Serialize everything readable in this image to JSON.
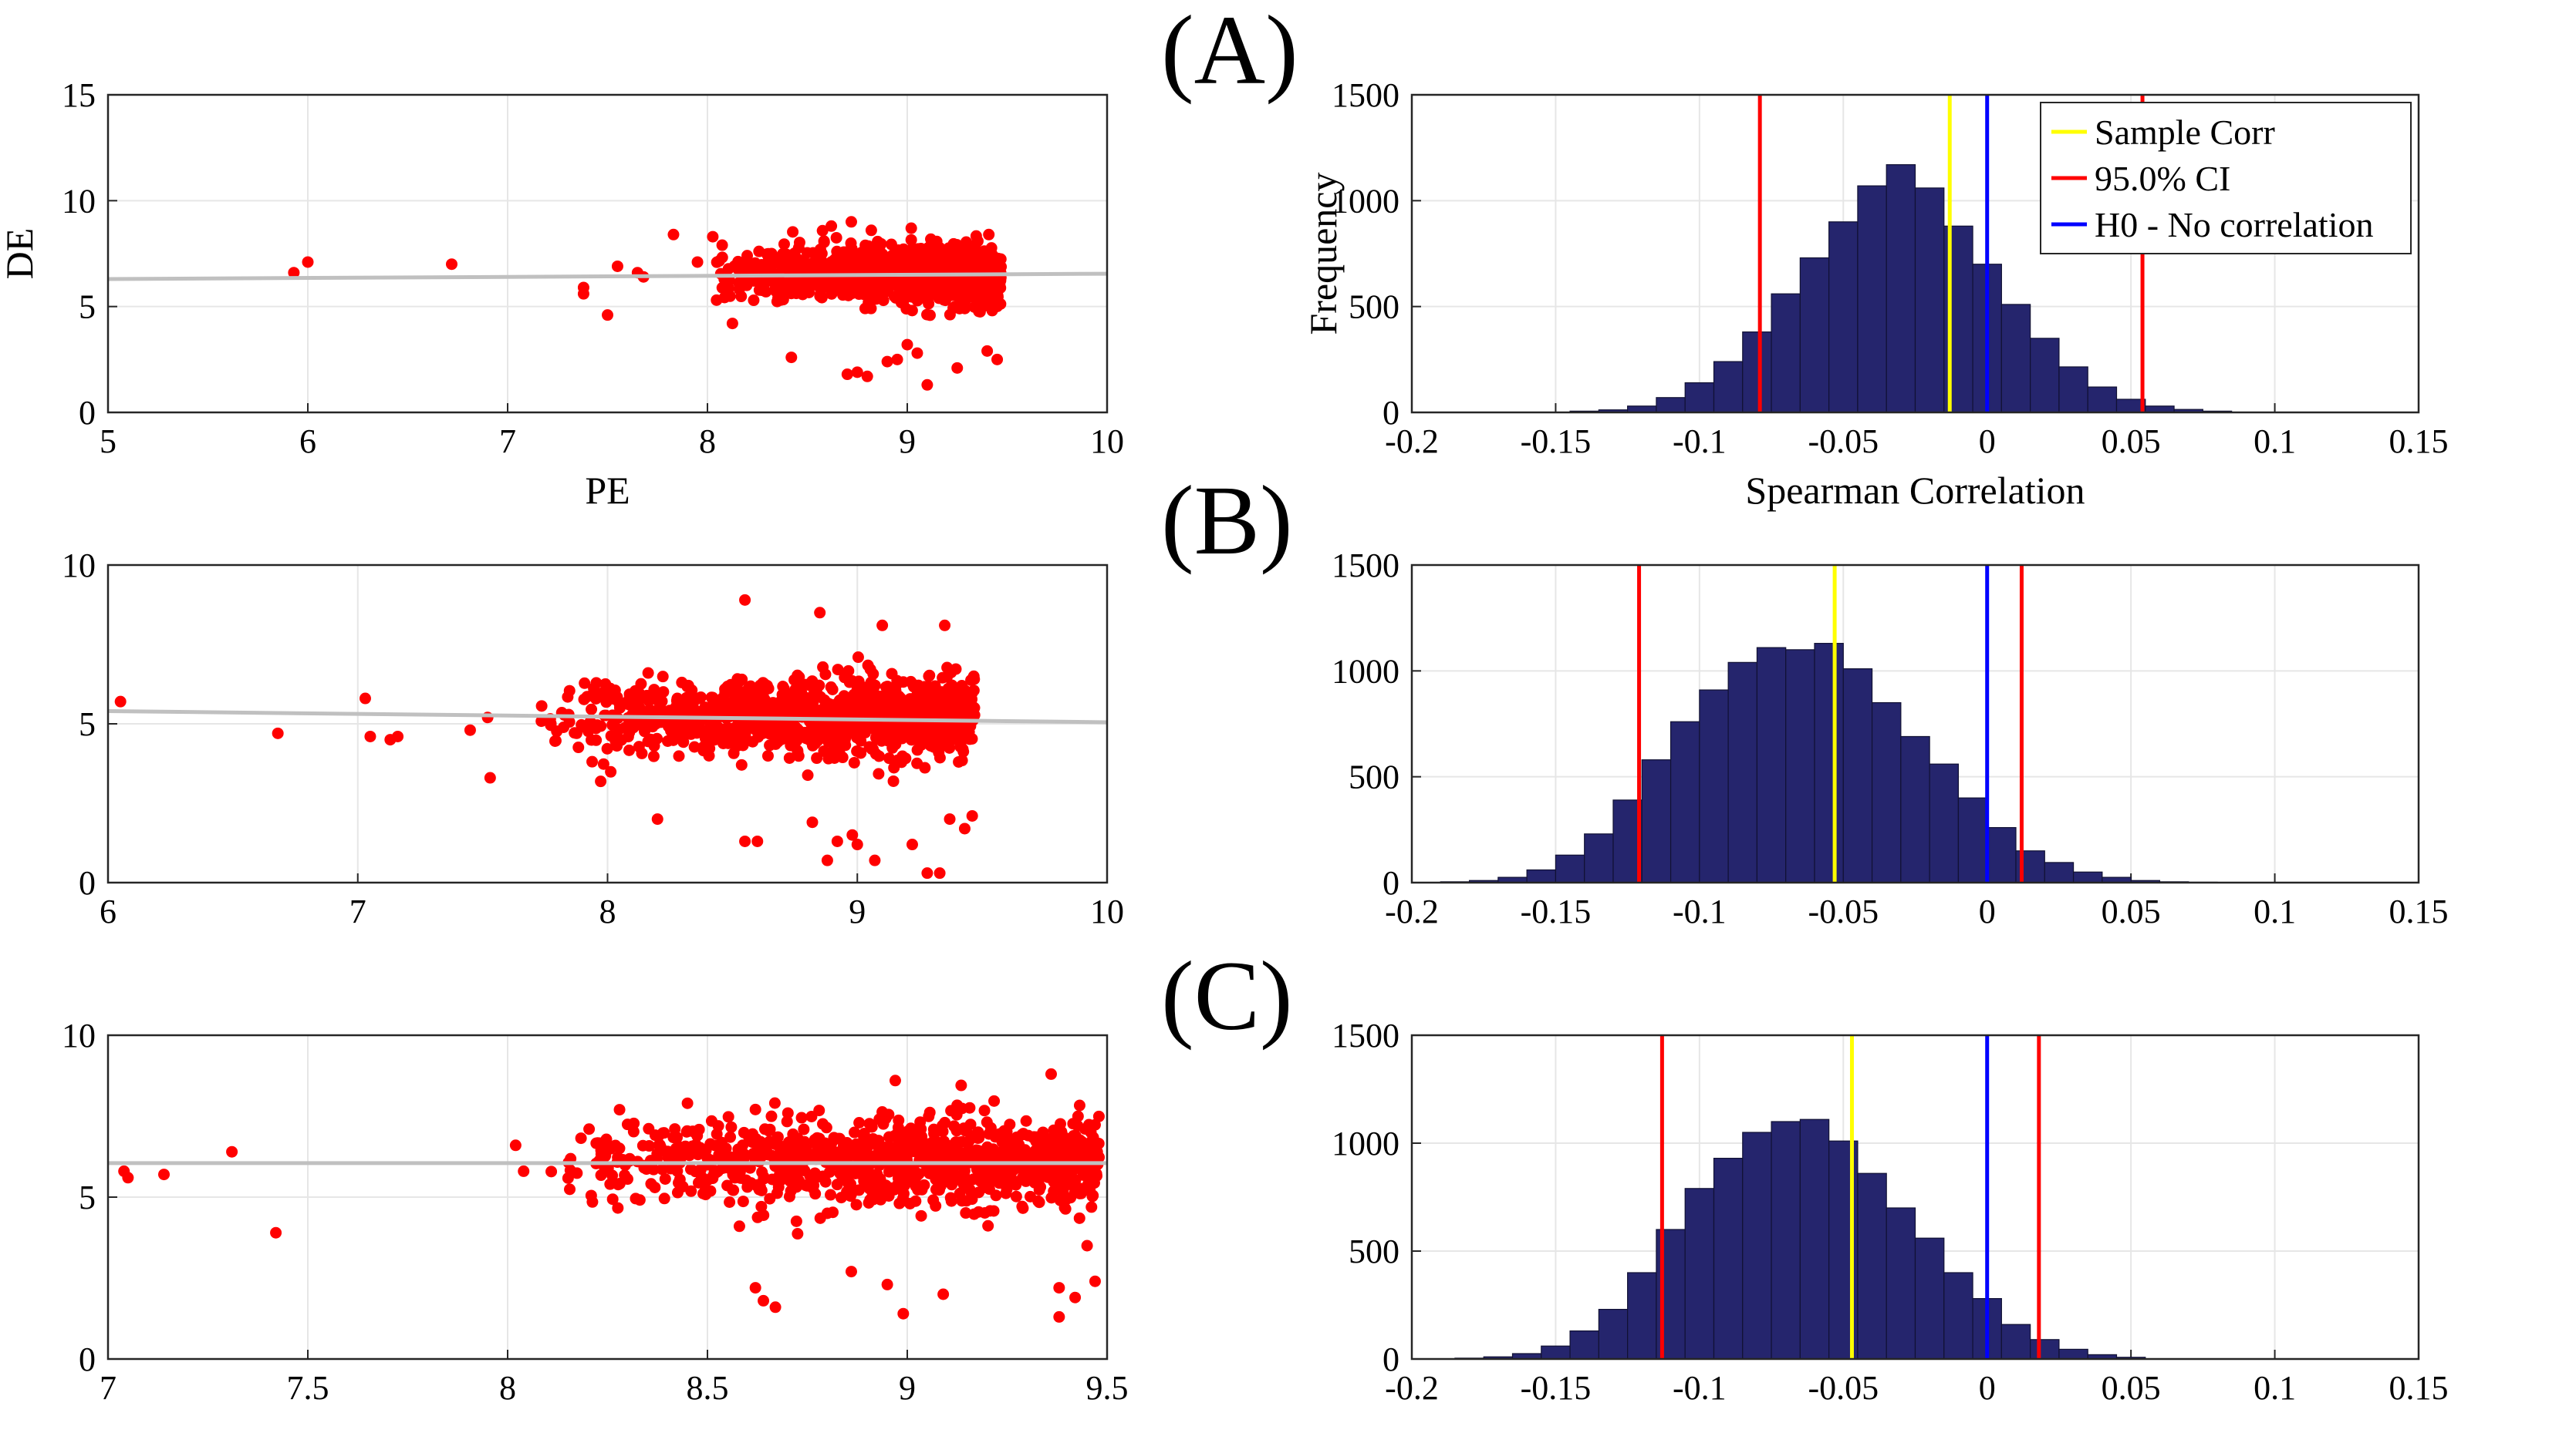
{
  "panel_labels": [
    "(A)",
    "(B)",
    "(C)"
  ],
  "colors": {
    "scatter_points": "#ff0000",
    "trend_line": "#c0c0c0",
    "histogram_bars": "#25256d",
    "sample_corr": "#ffff00",
    "ci_lines": "#ff0000",
    "h0_line": "#0000ff",
    "grid": "#e6e6e6"
  },
  "legend": {
    "sample_corr": "Sample Corr",
    "ci": "95.0% CI",
    "h0": "H0 - No correlation"
  },
  "chart_data": [
    {
      "panel": "(A)",
      "type": "scatter",
      "xlabel": "PE",
      "ylabel": "DE",
      "xlim": [
        5,
        10
      ],
      "ylim": [
        0,
        15
      ],
      "xticks": [
        "5",
        "6",
        "7",
        "8",
        "9",
        "10"
      ],
      "yticks": [
        "0",
        "5",
        "10",
        "15"
      ],
      "grid": true,
      "trend_line": {
        "x": [
          5,
          10
        ],
        "y": [
          6.3,
          6.55
        ]
      },
      "series": [
        {
          "points_outliers": [
            [
              5.93,
              6.6
            ],
            [
              6.0,
              7.1
            ],
            [
              6.72,
              7.0
            ],
            [
              7.38,
              5.9
            ],
            [
              7.38,
              5.6
            ],
            [
              7.5,
              4.6
            ],
            [
              7.55,
              6.9
            ],
            [
              7.65,
              6.6
            ],
            [
              7.68,
              6.4
            ],
            [
              7.83,
              8.4
            ],
            [
              7.95,
              7.1
            ],
            [
              8.42,
              2.6
            ],
            [
              8.7,
              1.8
            ],
            [
              8.75,
              1.9
            ],
            [
              8.8,
              1.7
            ],
            [
              8.9,
              2.4
            ],
            [
              8.95,
              2.5
            ],
            [
              9.0,
              3.2
            ],
            [
              9.05,
              2.8
            ],
            [
              9.1,
              1.3
            ],
            [
              9.25,
              2.1
            ],
            [
              9.4,
              2.9
            ],
            [
              9.45,
              2.5
            ],
            [
              8.62,
              8.8
            ],
            [
              8.72,
              9.0
            ],
            [
              8.82,
              8.6
            ],
            [
              9.02,
              8.7
            ]
          ],
          "dense_cluster": {
            "x_range": [
              8.0,
              9.47
            ],
            "y_center": 6.5,
            "y_spread": 1.2,
            "n": 1100
          }
        }
      ]
    },
    {
      "panel": "(A)",
      "type": "histogram",
      "xlabel": "Spearman Correlation",
      "ylabel": "Frequency",
      "xlim": [
        -0.2,
        0.15
      ],
      "ylim": [
        0,
        1500
      ],
      "xticks": [
        "-0.2",
        "-0.15",
        "-0.1",
        "-0.05",
        "0",
        "0.05",
        "0.1",
        "0.15"
      ],
      "yticks": [
        "0",
        "500",
        "1000",
        "1500"
      ],
      "grid": true,
      "legend_position": "top-right",
      "bin_edges_start": -0.145,
      "bin_width": 0.01,
      "counts": [
        6,
        12,
        30,
        70,
        140,
        240,
        380,
        560,
        730,
        900,
        1070,
        1170,
        1060,
        880,
        700,
        510,
        350,
        215,
        120,
        62,
        30,
        14,
        6
      ],
      "sample_corr": -0.013,
      "ci": [
        -0.079,
        0.054
      ],
      "h0": 0
    },
    {
      "panel": "(B)",
      "type": "scatter",
      "xlabel": "",
      "ylabel": "",
      "xlim": [
        6,
        10
      ],
      "ylim": [
        0,
        10
      ],
      "xticks": [
        "6",
        "7",
        "8",
        "9",
        "10"
      ],
      "yticks": [
        "0",
        "5",
        "10"
      ],
      "grid": true,
      "trend_line": {
        "x": [
          6,
          10
        ],
        "y": [
          5.4,
          5.05
        ]
      },
      "series": [
        {
          "points_outliers": [
            [
              6.05,
              5.7
            ],
            [
              6.68,
              4.7
            ],
            [
              7.03,
              5.8
            ],
            [
              7.05,
              4.6
            ],
            [
              7.13,
              4.5
            ],
            [
              7.16,
              4.6
            ],
            [
              7.45,
              4.8
            ],
            [
              7.52,
              5.2
            ],
            [
              7.53,
              3.3
            ],
            [
              8.2,
              2.0
            ],
            [
              8.55,
              1.3
            ],
            [
              8.6,
              1.3
            ],
            [
              8.82,
              1.9
            ],
            [
              8.88,
              0.7
            ],
            [
              8.92,
              1.3
            ],
            [
              8.98,
              1.5
            ],
            [
              9.0,
              1.2
            ],
            [
              9.07,
              0.7
            ],
            [
              9.22,
              1.2
            ],
            [
              9.28,
              0.3
            ],
            [
              9.33,
              0.3
            ],
            [
              9.37,
              2.0
            ],
            [
              9.43,
              1.7
            ],
            [
              9.46,
              2.1
            ],
            [
              8.55,
              8.9
            ],
            [
              8.85,
              8.5
            ],
            [
              9.1,
              8.1
            ],
            [
              9.35,
              8.1
            ]
          ],
          "dense_cluster": {
            "x_range": [
              7.7,
              9.47
            ],
            "y_center": 5.2,
            "y_spread": 1.1,
            "n": 1100
          }
        }
      ]
    },
    {
      "panel": "(B)",
      "type": "histogram",
      "xlabel": "",
      "ylabel": "",
      "xlim": [
        -0.2,
        0.15
      ],
      "ylim": [
        0,
        1500
      ],
      "xticks": [
        "-0.2",
        "-0.15",
        "-0.1",
        "-0.05",
        "0",
        "0.05",
        "0.1",
        "0.15"
      ],
      "yticks": [
        "0",
        "500",
        "1000",
        "1500"
      ],
      "grid": true,
      "bin_edges_start": -0.19,
      "bin_width": 0.01,
      "counts": [
        4,
        10,
        25,
        60,
        130,
        230,
        390,
        580,
        760,
        910,
        1040,
        1110,
        1100,
        1130,
        1010,
        850,
        690,
        560,
        400,
        260,
        150,
        95,
        50,
        25,
        10,
        4,
        2
      ],
      "sample_corr": -0.053,
      "ci": [
        -0.121,
        0.012
      ],
      "h0": 0
    },
    {
      "panel": "(C)",
      "type": "scatter",
      "xlabel": "",
      "ylabel": "",
      "xlim": [
        7,
        9.5
      ],
      "ylim": [
        0,
        10
      ],
      "xticks": [
        "7",
        "7.5",
        "8",
        "8.5",
        "9",
        "9.5"
      ],
      "yticks": [
        "0",
        "5",
        "10"
      ],
      "grid": true,
      "trend_line": {
        "x": [
          7,
          9.5
        ],
        "y": [
          6.05,
          6.05
        ]
      },
      "series": [
        {
          "points_outliers": [
            [
              7.04,
              5.8
            ],
            [
              7.05,
              5.6
            ],
            [
              7.14,
              5.7
            ],
            [
              7.31,
              6.4
            ],
            [
              7.42,
              3.9
            ],
            [
              8.02,
              6.6
            ],
            [
              8.04,
              5.8
            ],
            [
              8.5,
              6.0
            ],
            [
              8.58,
              4.1
            ],
            [
              8.62,
              2.2
            ],
            [
              8.64,
              1.8
            ],
            [
              8.67,
              1.6
            ],
            [
              8.8,
              4.5
            ],
            [
              8.86,
              2.7
            ],
            [
              8.95,
              2.3
            ],
            [
              8.99,
              1.4
            ],
            [
              9.09,
              2.0
            ],
            [
              9.38,
              2.2
            ],
            [
              9.38,
              1.3
            ],
            [
              9.42,
              1.9
            ],
            [
              9.47,
              2.4
            ],
            [
              9.45,
              3.5
            ],
            [
              8.97,
              8.6
            ],
            [
              9.36,
              8.8
            ],
            [
              8.45,
              7.9
            ],
            [
              8.28,
              7.7
            ]
          ],
          "dense_cluster": {
            "x_range": [
              8.1,
              9.48
            ],
            "y_center": 6.1,
            "y_spread": 1.2,
            "n": 1000
          }
        }
      ]
    },
    {
      "panel": "(C)",
      "type": "histogram",
      "xlabel": "",
      "ylabel": "",
      "xlim": [
        -0.2,
        0.15
      ],
      "ylim": [
        0,
        1500
      ],
      "xticks": [
        "-0.2",
        "-0.15",
        "-0.1",
        "-0.05",
        "0",
        "0.05",
        "0.1",
        "0.15"
      ],
      "yticks": [
        "0",
        "500",
        "1000",
        "1500"
      ],
      "grid": true,
      "bin_edges_start": -0.185,
      "bin_width": 0.01,
      "counts": [
        4,
        10,
        25,
        60,
        130,
        230,
        400,
        600,
        790,
        930,
        1050,
        1100,
        1110,
        1010,
        860,
        700,
        560,
        400,
        280,
        160,
        90,
        45,
        20,
        8
      ],
      "sample_corr": -0.047,
      "ci": [
        -0.113,
        0.018
      ],
      "h0": 0
    }
  ]
}
